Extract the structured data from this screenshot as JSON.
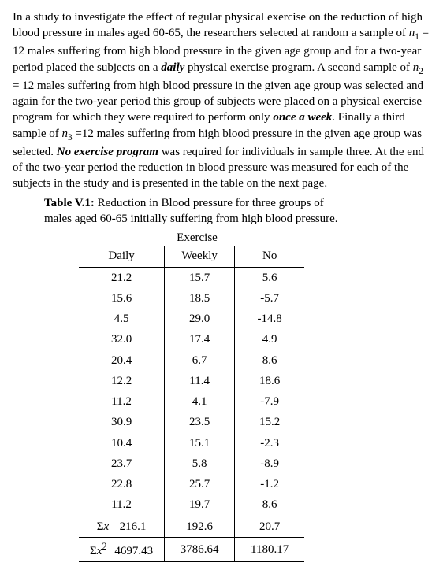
{
  "paragraph": {
    "p1a": "In a study to investigate the effect of regular physical exercise on the reduction of high blood pressure in males aged 60-65, the researchers selected at random a sample of ",
    "n1_html": "<i>n</i><sub>1</sub> = 12",
    "p1b": " males suffering from high blood pressure in the given age group and for a two-year period placed the subjects on a ",
    "daily": "daily",
    "p1c": " physical exercise program. A second sample of ",
    "n2_html": "<i>n</i><sub>2</sub> = 12",
    "p1d": " males suffering from high blood pressure in the given age group was selected and again for the two-year period this  group of subjects were placed on a  physical exercise program for which they were required to perform only ",
    "once": "once a week",
    "p1e": ". Finally a third sample of ",
    "n3_html": "<i>n</i><sub>3</sub> =12",
    "p1f": " males suffering from high blood pressure in the given age group was selected.  ",
    "noex": "No exercise program",
    "p1g": " was required for individuals in sample three.  At the end of the two-year period the reduction in blood pressure was measured for each of the subjects in the study and is presented in the table on the next page."
  },
  "caption": {
    "lead": "Table V.1:",
    "rest1": " Reduction in Blood pressure for three groups of",
    "rest2": "males aged 60-65 initially suffering from high blood pressure."
  },
  "table": {
    "super_header": "Exercise",
    "headers": [
      "Daily",
      "Weekly",
      "No"
    ],
    "rows": [
      [
        "21.2",
        "15.7",
        "5.6"
      ],
      [
        "15.6",
        "18.5",
        "-5.7"
      ],
      [
        "4.5",
        "29.0",
        "-14.8"
      ],
      [
        "32.0",
        "17.4",
        "4.9"
      ],
      [
        "20.4",
        "6.7",
        "8.6"
      ],
      [
        "12.2",
        "11.4",
        "18.6"
      ],
      [
        "11.2",
        "4.1",
        "-7.9"
      ],
      [
        "30.9",
        "23.5",
        "15.2"
      ],
      [
        "10.4",
        "15.1",
        "-2.3"
      ],
      [
        "23.7",
        "5.8",
        "-8.9"
      ],
      [
        "22.8",
        "25.7",
        "-1.2"
      ],
      [
        "11.2",
        "19.7",
        "8.6"
      ]
    ],
    "sum_label_html": "Σ<i>x</i>",
    "sum_row": [
      "216.1",
      "192.6",
      "20.7"
    ],
    "sumsq_label_html": "Σ<i>x</i><sup>2</sup>",
    "sumsq_row": [
      "4697.43",
      "3786.64",
      "1180.17"
    ]
  }
}
